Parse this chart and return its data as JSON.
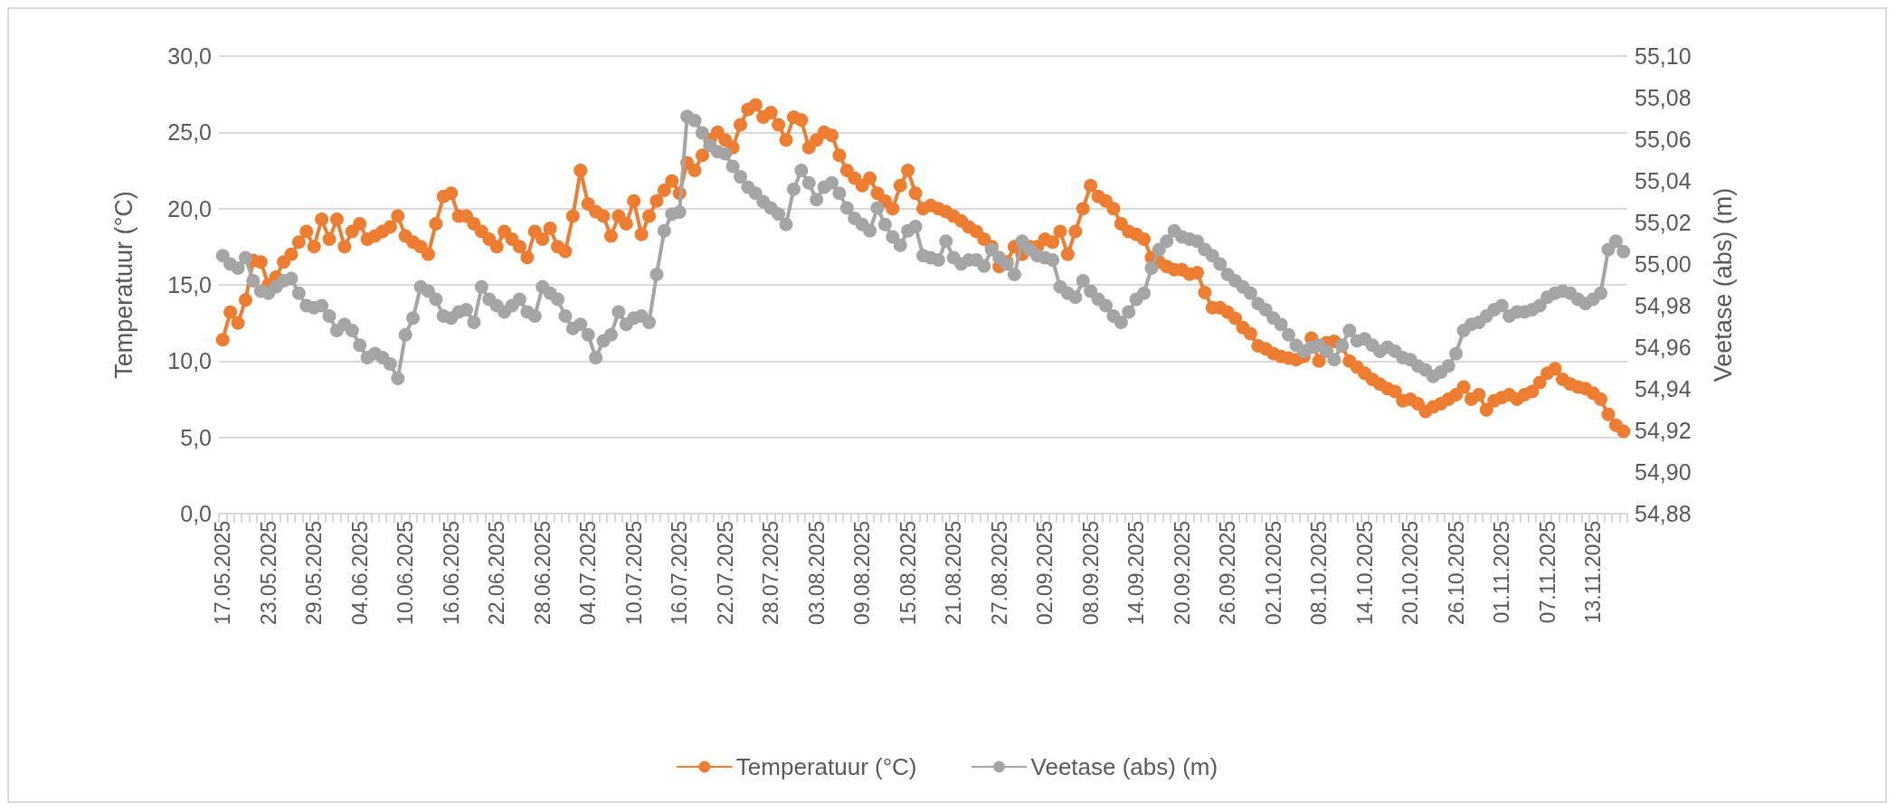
{
  "chart_data": {
    "type": "line",
    "categories": [
      "17.05.2025",
      null,
      null,
      null,
      null,
      null,
      "23.05.2025",
      null,
      null,
      null,
      null,
      null,
      "29.05.2025",
      null,
      null,
      null,
      null,
      null,
      "04.06.2025",
      null,
      null,
      null,
      null,
      null,
      "10.06.2025",
      null,
      null,
      null,
      null,
      null,
      "16.06.2025",
      null,
      null,
      null,
      null,
      null,
      "22.06.2025",
      null,
      null,
      null,
      null,
      null,
      "28.06.2025",
      null,
      null,
      null,
      null,
      null,
      "04.07.2025",
      null,
      null,
      null,
      null,
      null,
      "10.07.2025",
      null,
      null,
      null,
      null,
      null,
      "16.07.2025",
      null,
      null,
      null,
      null,
      null,
      "22.07.2025",
      null,
      null,
      null,
      null,
      null,
      "28.07.2025",
      null,
      null,
      null,
      null,
      null,
      "03.08.2025",
      null,
      null,
      null,
      null,
      null,
      "09.08.2025",
      null,
      null,
      null,
      null,
      null,
      "15.08.2025",
      null,
      null,
      null,
      null,
      null,
      "21.08.2025",
      null,
      null,
      null,
      null,
      null,
      "27.08.2025",
      null,
      null,
      null,
      null,
      null,
      "02.09.2025",
      null,
      null,
      null,
      null,
      null,
      "08.09.2025",
      null,
      null,
      null,
      null,
      null,
      "14.09.2025",
      null,
      null,
      null,
      null,
      null,
      "20.09.2025",
      null,
      null,
      null,
      null,
      null,
      "26.09.2025",
      null,
      null,
      null,
      null,
      null,
      "02.10.2025",
      null,
      null,
      null,
      null,
      null,
      "08.10.2025",
      null,
      null,
      null,
      null,
      null,
      "14.10.2025",
      null,
      null,
      null,
      null,
      null,
      "20.10.2025",
      null,
      null,
      null,
      null,
      null,
      "26.10.2025",
      null,
      null,
      null,
      null,
      null,
      "01.11.2025",
      null,
      null,
      null,
      null,
      null,
      "07.11.2025",
      null,
      null,
      null,
      null,
      null,
      "13.11.2025",
      null,
      null,
      null,
      null
    ],
    "series": [
      {
        "name": "Temperatuur (°C)",
        "color": "#ed7d31",
        "values": [
          11.4,
          13.2,
          12.5,
          14.0,
          16.6,
          16.5,
          15.0,
          15.5,
          16.5,
          17.0,
          17.8,
          18.5,
          17.5,
          19.3,
          18.0,
          19.3,
          17.5,
          18.5,
          19.0,
          18.0,
          18.2,
          18.5,
          18.8,
          19.5,
          18.2,
          17.8,
          17.5,
          17.0,
          19.0,
          20.8,
          21.0,
          19.5,
          19.5,
          19.0,
          18.5,
          18.0,
          17.5,
          18.5,
          18.0,
          17.5,
          16.8,
          18.5,
          18.0,
          18.7,
          17.5,
          17.2,
          19.5,
          22.5,
          20.3,
          19.8,
          19.5,
          18.2,
          19.5,
          19.0,
          20.5,
          18.3,
          19.5,
          20.5,
          21.2,
          21.8,
          21.0,
          23.0,
          22.5,
          23.5,
          24.5,
          25.0,
          24.5,
          24.0,
          25.5,
          26.5,
          26.8,
          26.0,
          26.3,
          25.5,
          24.5,
          26.0,
          25.8,
          24.0,
          24.5,
          25.0,
          24.8,
          23.5,
          22.5,
          22.0,
          21.5,
          22.0,
          21.0,
          20.5,
          20.0,
          21.5,
          22.5,
          21.0,
          20.0,
          20.2,
          20.0,
          19.8,
          19.5,
          19.2,
          18.8,
          18.5,
          18.0,
          17.5,
          16.2,
          16.5,
          17.5,
          17.0,
          17.5,
          17.5,
          18.0,
          17.8,
          18.5,
          17.0,
          18.5,
          20.0,
          21.5,
          20.8,
          20.5,
          20.0,
          19.0,
          18.5,
          18.3,
          18.0,
          16.8,
          16.5,
          16.2,
          16.0,
          16.0,
          15.7,
          15.8,
          14.5,
          13.5,
          13.5,
          13.2,
          12.8,
          12.2,
          11.8,
          11.0,
          10.8,
          10.5,
          10.3,
          10.2,
          10.1,
          10.3,
          11.5,
          10.0,
          11.2,
          11.3,
          11.0,
          10.0,
          9.6,
          9.2,
          8.8,
          8.5,
          8.2,
          8.0,
          7.4,
          7.5,
          7.2,
          6.7,
          7.0,
          7.2,
          7.5,
          7.8,
          8.3,
          7.5,
          7.8,
          6.8,
          7.4,
          7.6,
          7.8,
          7.5,
          7.8,
          8.0,
          8.6,
          9.2,
          9.5,
          8.8,
          8.5,
          8.3,
          8.2,
          7.9,
          7.5,
          6.5,
          5.8,
          5.4
        ]
      },
      {
        "name": "Veetase (abs) (m)",
        "color": "#a5a5a5",
        "axis": "y2",
        "values": [
          55.004,
          55.0,
          54.998,
          55.003,
          54.992,
          54.987,
          54.986,
          54.989,
          54.992,
          54.993,
          54.986,
          54.98,
          54.979,
          54.98,
          54.975,
          54.968,
          54.971,
          54.968,
          54.961,
          54.955,
          54.957,
          54.955,
          54.952,
          54.945,
          54.966,
          54.974,
          54.989,
          54.987,
          54.983,
          54.975,
          54.974,
          54.977,
          54.978,
          54.972,
          54.989,
          54.983,
          54.98,
          54.977,
          54.98,
          54.983,
          54.977,
          54.975,
          54.989,
          54.986,
          54.983,
          54.975,
          54.969,
          54.971,
          54.966,
          54.955,
          54.963,
          54.966,
          54.977,
          54.971,
          54.974,
          54.975,
          54.972,
          54.995,
          55.016,
          55.024,
          55.025,
          55.071,
          55.069,
          55.063,
          55.057,
          55.054,
          55.053,
          55.047,
          55.042,
          55.037,
          55.034,
          55.03,
          55.027,
          55.024,
          55.019,
          55.036,
          55.045,
          55.039,
          55.031,
          55.037,
          55.039,
          55.034,
          55.027,
          55.022,
          55.019,
          55.016,
          55.027,
          55.019,
          55.013,
          55.009,
          55.016,
          55.018,
          55.004,
          55.003,
          55.002,
          55.011,
          55.003,
          55.0,
          55.002,
          55.002,
          54.999,
          55.007,
          55.003,
          55.0,
          54.995,
          55.011,
          55.007,
          55.004,
          55.003,
          55.002,
          54.989,
          54.986,
          54.984,
          54.992,
          54.987,
          54.983,
          54.98,
          54.975,
          54.972,
          54.977,
          54.983,
          54.986,
          54.998,
          55.007,
          55.011,
          55.016,
          55.013,
          55.012,
          55.011,
          55.007,
          55.004,
          55.0,
          54.995,
          54.992,
          54.989,
          54.986,
          54.981,
          54.978,
          54.974,
          54.971,
          54.966,
          54.961,
          54.958,
          54.96,
          54.961,
          54.958,
          54.954,
          54.961,
          54.968,
          54.963,
          54.964,
          54.961,
          54.958,
          54.96,
          54.958,
          54.955,
          54.954,
          54.951,
          54.949,
          54.946,
          54.948,
          54.951,
          54.957,
          54.968,
          54.971,
          54.972,
          54.975,
          54.978,
          54.98,
          54.975,
          54.977,
          54.977,
          54.978,
          54.98,
          54.984,
          54.986,
          54.987,
          54.986,
          54.983,
          54.981,
          54.983,
          54.986,
          55.007,
          55.011,
          55.006
        ]
      }
    ],
    "ylabel": "Temperatuur (°C)",
    "y2label": "Veetase (abs) (m)",
    "ylim": [
      0,
      30
    ],
    "yticks": [
      {
        "value": 0,
        "label": "0,0"
      },
      {
        "value": 5,
        "label": "5,0"
      },
      {
        "value": 10,
        "label": "10,0"
      },
      {
        "value": 15,
        "label": "15,0"
      },
      {
        "value": 20,
        "label": "20,0"
      },
      {
        "value": 25,
        "label": "25,0"
      },
      {
        "value": 30,
        "label": "30,0"
      }
    ],
    "y2lim": [
      54.88,
      55.1
    ],
    "y2ticks": [
      {
        "value": 54.88,
        "label": "54,88"
      },
      {
        "value": 54.9,
        "label": "54,90"
      },
      {
        "value": 54.92,
        "label": "54,92"
      },
      {
        "value": 54.94,
        "label": "54,94"
      },
      {
        "value": 54.96,
        "label": "54,96"
      },
      {
        "value": 54.98,
        "label": "54,98"
      },
      {
        "value": 55.0,
        "label": "55,00"
      },
      {
        "value": 55.02,
        "label": "55,02"
      },
      {
        "value": 55.04,
        "label": "55,04"
      },
      {
        "value": 55.06,
        "label": "55,06"
      },
      {
        "value": 55.08,
        "label": "55,08"
      },
      {
        "value": 55.1,
        "label": "55,10"
      }
    ],
    "grid": "y",
    "legend": "bottom",
    "marker": "circle",
    "line_style": "solid"
  }
}
